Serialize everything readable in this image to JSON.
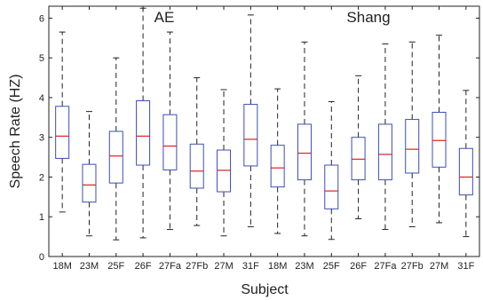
{
  "chart_data": {
    "type": "box",
    "title": "",
    "xlabel": "Subject",
    "ylabel": "Speech Rate (HZ)",
    "ylim": [
      0,
      6.3
    ],
    "yticks": [
      0,
      1,
      2,
      3,
      4,
      5,
      6
    ],
    "grid": false,
    "annotations": [
      {
        "text": "AE",
        "group": "AE"
      },
      {
        "text": "Shang",
        "group": "Shang"
      }
    ],
    "categories": [
      "18M",
      "23M",
      "25F",
      "26F",
      "27Fa",
      "27Fb",
      "27M",
      "31F",
      "18M",
      "23M",
      "25F",
      "26F",
      "27Fa",
      "27Fb",
      "27M",
      "31F"
    ],
    "boxes": [
      {
        "group": "AE",
        "label": "18M",
        "whisker_low": 1.12,
        "q1": 2.47,
        "median": 3.03,
        "q3": 3.78,
        "whisker_high": 5.65
      },
      {
        "group": "AE",
        "label": "23M",
        "whisker_low": 0.52,
        "q1": 1.37,
        "median": 1.8,
        "q3": 2.32,
        "whisker_high": 3.65
      },
      {
        "group": "AE",
        "label": "25F",
        "whisker_low": 0.42,
        "q1": 1.85,
        "median": 2.53,
        "q3": 3.15,
        "whisker_high": 5.0
      },
      {
        "group": "AE",
        "label": "26F",
        "whisker_low": 0.47,
        "q1": 2.3,
        "median": 3.03,
        "q3": 3.92,
        "whisker_high": 6.25
      },
      {
        "group": "AE",
        "label": "27Fa",
        "whisker_low": 0.68,
        "q1": 2.18,
        "median": 2.78,
        "q3": 3.57,
        "whisker_high": 5.65
      },
      {
        "group": "AE",
        "label": "27Fb",
        "whisker_low": 0.78,
        "q1": 1.72,
        "median": 2.15,
        "q3": 2.83,
        "whisker_high": 4.5
      },
      {
        "group": "AE",
        "label": "27M",
        "whisker_low": 0.52,
        "q1": 1.63,
        "median": 2.17,
        "q3": 2.68,
        "whisker_high": 4.2
      },
      {
        "group": "AE",
        "label": "31F",
        "whisker_low": 0.75,
        "q1": 2.28,
        "median": 2.95,
        "q3": 3.83,
        "whisker_high": 6.08
      },
      {
        "group": "Shang",
        "label": "18M",
        "whisker_low": 0.58,
        "q1": 1.75,
        "median": 2.23,
        "q3": 2.8,
        "whisker_high": 4.22
      },
      {
        "group": "Shang",
        "label": "23M",
        "whisker_low": 0.52,
        "q1": 1.93,
        "median": 2.6,
        "q3": 3.33,
        "whisker_high": 5.4
      },
      {
        "group": "Shang",
        "label": "25F",
        "whisker_low": 0.43,
        "q1": 1.2,
        "median": 1.65,
        "q3": 2.3,
        "whisker_high": 3.9
      },
      {
        "group": "Shang",
        "label": "26F",
        "whisker_low": 0.95,
        "q1": 1.93,
        "median": 2.45,
        "q3": 3.0,
        "whisker_high": 4.55
      },
      {
        "group": "Shang",
        "label": "27Fa",
        "whisker_low": 0.68,
        "q1": 1.93,
        "median": 2.57,
        "q3": 3.33,
        "whisker_high": 5.35
      },
      {
        "group": "Shang",
        "label": "27Fb",
        "whisker_low": 0.75,
        "q1": 2.1,
        "median": 2.7,
        "q3": 3.45,
        "whisker_high": 5.4
      },
      {
        "group": "Shang",
        "label": "27M",
        "whisker_low": 0.85,
        "q1": 2.25,
        "median": 2.92,
        "q3": 3.63,
        "whisker_high": 5.57
      },
      {
        "group": "Shang",
        "label": "31F",
        "whisker_low": 0.5,
        "q1": 1.55,
        "median": 2.0,
        "q3": 2.72,
        "whisker_high": 4.18
      }
    ],
    "colors": {
      "box": "#3b4fb4",
      "median": "#e02020",
      "whisker": "#222222",
      "axis": "#222222"
    }
  }
}
